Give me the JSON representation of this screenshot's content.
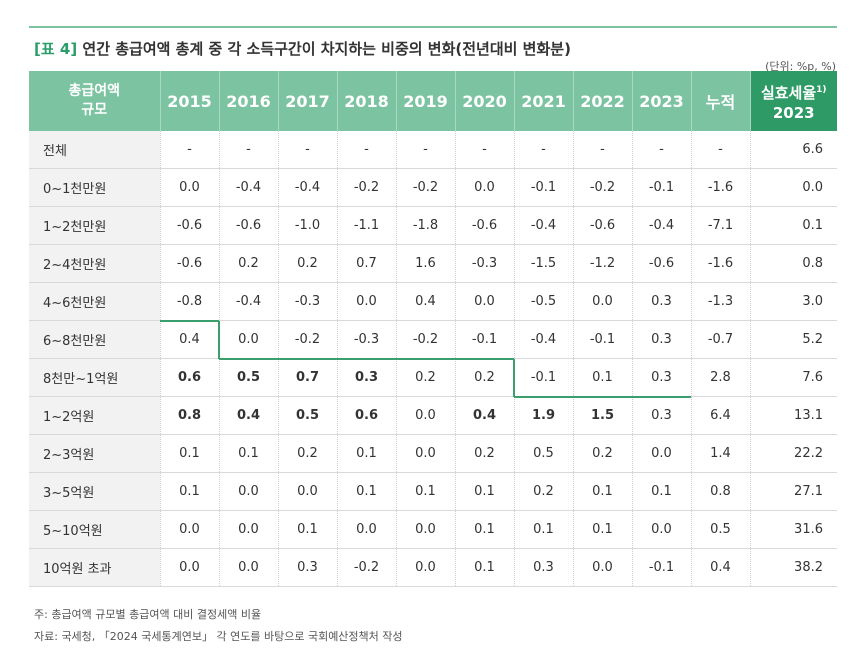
{
  "title": {
    "tag": "[표 4]",
    "text": "연간 총급여액 총계 중 각 소득구간이 차지하는 비중의 변화(전년대비 변화분)"
  },
  "unit": "(단위: %p, %)",
  "table": {
    "first_header": [
      "총급여액",
      "규모"
    ],
    "year_headers": [
      "2015",
      "2016",
      "2017",
      "2018",
      "2019",
      "2020",
      "2021",
      "2022",
      "2023"
    ],
    "cum_header": "누적",
    "eff_header": {
      "label": "실효세율",
      "note": "1)",
      "year": "2023"
    },
    "rows": [
      {
        "label": "전체",
        "values": [
          "-",
          "-",
          "-",
          "-",
          "-",
          "-",
          "-",
          "-",
          "-"
        ],
        "cum": "-",
        "eff": "6.6"
      },
      {
        "label": "0~1천만원",
        "values": [
          "0.0",
          "-0.4",
          "-0.4",
          "-0.2",
          "-0.2",
          "0.0",
          "-0.1",
          "-0.2",
          "-0.1"
        ],
        "cum": "-1.6",
        "eff": "0.0"
      },
      {
        "label": "1~2천만원",
        "values": [
          "-0.6",
          "-0.6",
          "-1.0",
          "-1.1",
          "-1.8",
          "-0.6",
          "-0.4",
          "-0.6",
          "-0.4"
        ],
        "cum": "-7.1",
        "eff": "0.1"
      },
      {
        "label": "2~4천만원",
        "values": [
          "-0.6",
          "0.2",
          "0.2",
          "0.7",
          "1.6",
          "-0.3",
          "-1.5",
          "-1.2",
          "-0.6"
        ],
        "cum": "-1.6",
        "eff": "0.8"
      },
      {
        "label": "4~6천만원",
        "values": [
          "-0.8",
          "-0.4",
          "-0.3",
          "0.0",
          "0.4",
          "0.0",
          "-0.5",
          "0.0",
          "0.3"
        ],
        "cum": "-1.3",
        "eff": "3.0"
      },
      {
        "label": "6~8천만원",
        "values": [
          "0.4",
          "0.0",
          "-0.2",
          "-0.3",
          "-0.2",
          "-0.1",
          "-0.4",
          "-0.1",
          "0.3"
        ],
        "cum": "-0.7",
        "eff": "5.2"
      },
      {
        "label": "8천만~1억원",
        "values": [
          "0.6",
          "0.5",
          "0.7",
          "0.3",
          "0.2",
          "0.2",
          "-0.1",
          "0.1",
          "0.3"
        ],
        "cum": "2.8",
        "eff": "7.6"
      },
      {
        "label": "1~2억원",
        "values": [
          "0.8",
          "0.4",
          "0.5",
          "0.6",
          "0.0",
          "0.4",
          "1.9",
          "1.5",
          "0.3"
        ],
        "cum": "6.4",
        "eff": "13.1"
      },
      {
        "label": "2~3억원",
        "values": [
          "0.1",
          "0.1",
          "0.2",
          "0.1",
          "0.0",
          "0.2",
          "0.5",
          "0.2",
          "0.0"
        ],
        "cum": "1.4",
        "eff": "22.2"
      },
      {
        "label": "3~5억원",
        "values": [
          "0.1",
          "0.0",
          "0.0",
          "0.1",
          "0.1",
          "0.1",
          "0.2",
          "0.1",
          "0.1"
        ],
        "cum": "0.8",
        "eff": "27.1"
      },
      {
        "label": "5~10억원",
        "values": [
          "0.0",
          "0.0",
          "0.1",
          "0.0",
          "0.0",
          "0.1",
          "0.1",
          "0.1",
          "0.0"
        ],
        "cum": "0.5",
        "eff": "31.6"
      },
      {
        "label": "10억원 초과",
        "values": [
          "0.0",
          "0.0",
          "0.3",
          "-0.2",
          "0.0",
          "0.1",
          "0.3",
          "0.0",
          "-0.1"
        ],
        "cum": "0.4",
        "eff": "38.2"
      }
    ]
  },
  "notes": [
    "주: 총급여액 규모별 총급여액 대비 결정세액 비율",
    "자료: 국세청, 「2024 국세통계연보」 각 연도를 바탕으로 국회예산정책처 작성"
  ]
}
